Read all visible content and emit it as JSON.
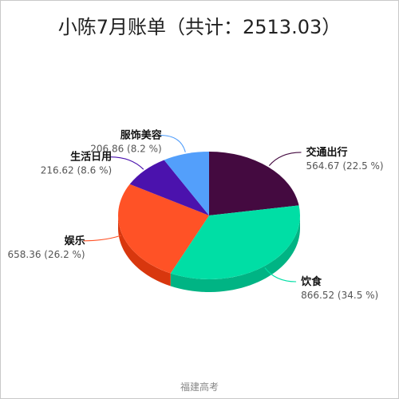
{
  "title": "小陈7月账单（共计：2513.03）",
  "credit": "福建高考",
  "chart_data": {
    "type": "pie",
    "title": "小陈7月账单（共计：2513.03）",
    "total": 2513.03,
    "slices": [
      {
        "name": "交通出行",
        "value": 564.67,
        "percent": "22.5 %",
        "label": "564.67 (22.5 %)",
        "color": "#440a40",
        "side": "#2c0629"
      },
      {
        "name": "饮食",
        "value": 866.52,
        "percent": "34.5 %",
        "label": "866.52 (34.5 %)",
        "color": "#00dea5",
        "side": "#00b484"
      },
      {
        "name": "娱乐",
        "value": 658.36,
        "percent": "26.2 %",
        "label": "658.36 (26.2 %)",
        "color": "#ff5226",
        "side": "#d8370e"
      },
      {
        "name": "生活日用",
        "value": 216.62,
        "percent": "8.6 %",
        "label": "216.62 (8.6 %)",
        "color": "#4b12ad",
        "side": "#330a7c"
      },
      {
        "name": "服饰美容",
        "value": 206.86,
        "percent": "8.2 %",
        "label": "206.86 (8.2 %)",
        "color": "#539ffb",
        "side": "#327fd6"
      }
    ]
  }
}
